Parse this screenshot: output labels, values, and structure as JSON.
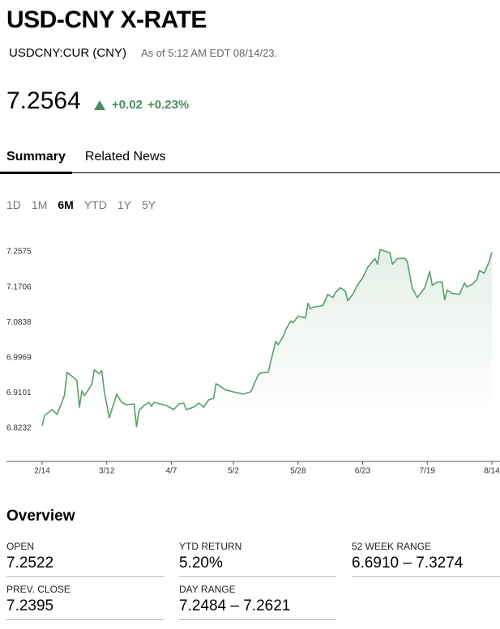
{
  "header": {
    "title": "USD-CNY X-RATE",
    "ticker": "USDCNY:CUR (CNY)",
    "as_of": "As of 5:12 AM EDT 08/14/23."
  },
  "quote": {
    "price": "7.2564",
    "change": "+0.02",
    "change_pct": "+0.23%"
  },
  "tabs": [
    "Summary",
    "Related News"
  ],
  "ranges": [
    "1D",
    "1M",
    "6M",
    "YTD",
    "1Y",
    "5Y"
  ],
  "chart_data": {
    "type": "line",
    "x": [
      "2/14",
      "2/15",
      "2/18",
      "2/20",
      "2/22",
      "2/23",
      "2/24",
      "2/28",
      "3/1",
      "3/2",
      "3/3",
      "3/6",
      "3/7",
      "3/9",
      "3/10",
      "3/11",
      "3/13",
      "3/16",
      "3/18",
      "3/20",
      "3/23",
      "3/24",
      "3/25",
      "3/27",
      "3/29",
      "3/30",
      "3/31",
      "4/5",
      "4/8",
      "4/10",
      "4/12",
      "4/13",
      "4/16",
      "4/18",
      "4/19",
      "4/20",
      "4/22",
      "4/24",
      "4/25",
      "4/29",
      "5/6",
      "5/9",
      "5/12",
      "5/13",
      "5/16",
      "5/17",
      "5/19",
      "5/20",
      "5/22",
      "5/23",
      "5/25",
      "5/26",
      "5/28",
      "5/31",
      "6/1",
      "6/2",
      "6/3",
      "6/7",
      "6/9",
      "6/11",
      "6/12",
      "6/14",
      "6/16",
      "6/17",
      "6/19",
      "6/21",
      "6/23",
      "6/25",
      "6/28",
      "6/29",
      "6/30",
      "7/3",
      "7/4",
      "7/5",
      "7/7",
      "7/10",
      "7/11",
      "7/13",
      "7/15",
      "7/18",
      "7/20",
      "7/21",
      "7/23",
      "7/25",
      "7/26",
      "7/27",
      "7/29",
      "8/1",
      "8/3",
      "8/4",
      "8/6",
      "8/8",
      "8/9",
      "8/11",
      "8/13",
      "8/14"
    ],
    "values": [
      6.829,
      6.855,
      6.869,
      6.857,
      6.887,
      6.905,
      6.961,
      6.941,
      6.875,
      6.915,
      6.903,
      6.931,
      6.967,
      6.957,
      6.965,
      6.915,
      6.849,
      6.907,
      6.887,
      6.881,
      6.883,
      6.827,
      6.867,
      6.879,
      6.887,
      6.877,
      6.887,
      6.879,
      6.869,
      6.883,
      6.885,
      6.869,
      6.875,
      6.885,
      6.881,
      6.875,
      6.893,
      6.897,
      6.933,
      6.917,
      6.907,
      6.913,
      6.955,
      6.959,
      6.961,
      6.987,
      7.037,
      7.029,
      7.049,
      7.065,
      7.087,
      7.083,
      7.099,
      7.095,
      7.131,
      7.117,
      7.121,
      7.125,
      7.153,
      7.145,
      7.157,
      7.169,
      7.161,
      7.137,
      7.153,
      7.177,
      7.193,
      7.219,
      7.241,
      7.227,
      7.263,
      7.257,
      7.255,
      7.227,
      7.241,
      7.241,
      7.233,
      7.167,
      7.145,
      7.169,
      7.209,
      7.175,
      7.183,
      7.183,
      7.139,
      7.163,
      7.155,
      7.153,
      7.181,
      7.171,
      7.177,
      7.189,
      7.211,
      7.205,
      7.235,
      7.2564
    ],
    "color": "#5a9e6f",
    "ylim": [
      6.7415,
      7.2894
    ],
    "yticks": [
      6.8232,
      6.9101,
      6.9969,
      7.0838,
      7.1706,
      7.2575
    ],
    "xticks": [
      "2/14",
      "3/12",
      "4/7",
      "5/2",
      "5/28",
      "6/23",
      "7/19",
      "8/14"
    ]
  },
  "overview": {
    "title": "Overview",
    "items": [
      {
        "label": "OPEN",
        "value": "7.2522"
      },
      {
        "label": "YTD RETURN",
        "value": "5.20%"
      },
      {
        "label": "52 WEEK RANGE",
        "value": "6.6910 – 7.3274"
      },
      {
        "label": "PREV. CLOSE",
        "value": "7.2395"
      },
      {
        "label": "DAY RANGE",
        "value": "7.2484 – 7.2621"
      }
    ]
  }
}
